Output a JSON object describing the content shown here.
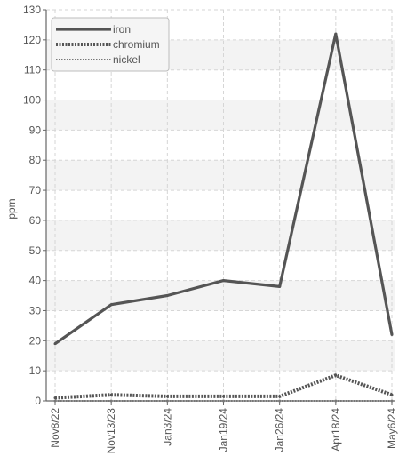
{
  "chart_data": {
    "type": "line",
    "title": "",
    "xlabel": "",
    "ylabel": "ppm",
    "ylim": [
      0,
      130
    ],
    "ytick_step": 10,
    "grid": true,
    "legend_position": "top-left",
    "categories": [
      "Nov8/22",
      "Nov13/23",
      "Jan3/24",
      "Jan19/24",
      "Jan26/24",
      "Apr18/24",
      "May6/24"
    ],
    "series": [
      {
        "name": "iron",
        "values": [
          19,
          32,
          35,
          40,
          38,
          122,
          22
        ],
        "color": "#555555",
        "style": "solid"
      },
      {
        "name": "chromium",
        "values": [
          1,
          2,
          1.5,
          1.5,
          1.5,
          8.5,
          2
        ],
        "color": "#555555",
        "style": "dotted-thick"
      },
      {
        "name": "nickel",
        "values": [
          0,
          0,
          0,
          0,
          0,
          0,
          0
        ],
        "color": "#777777",
        "style": "dotted-thin"
      }
    ]
  }
}
